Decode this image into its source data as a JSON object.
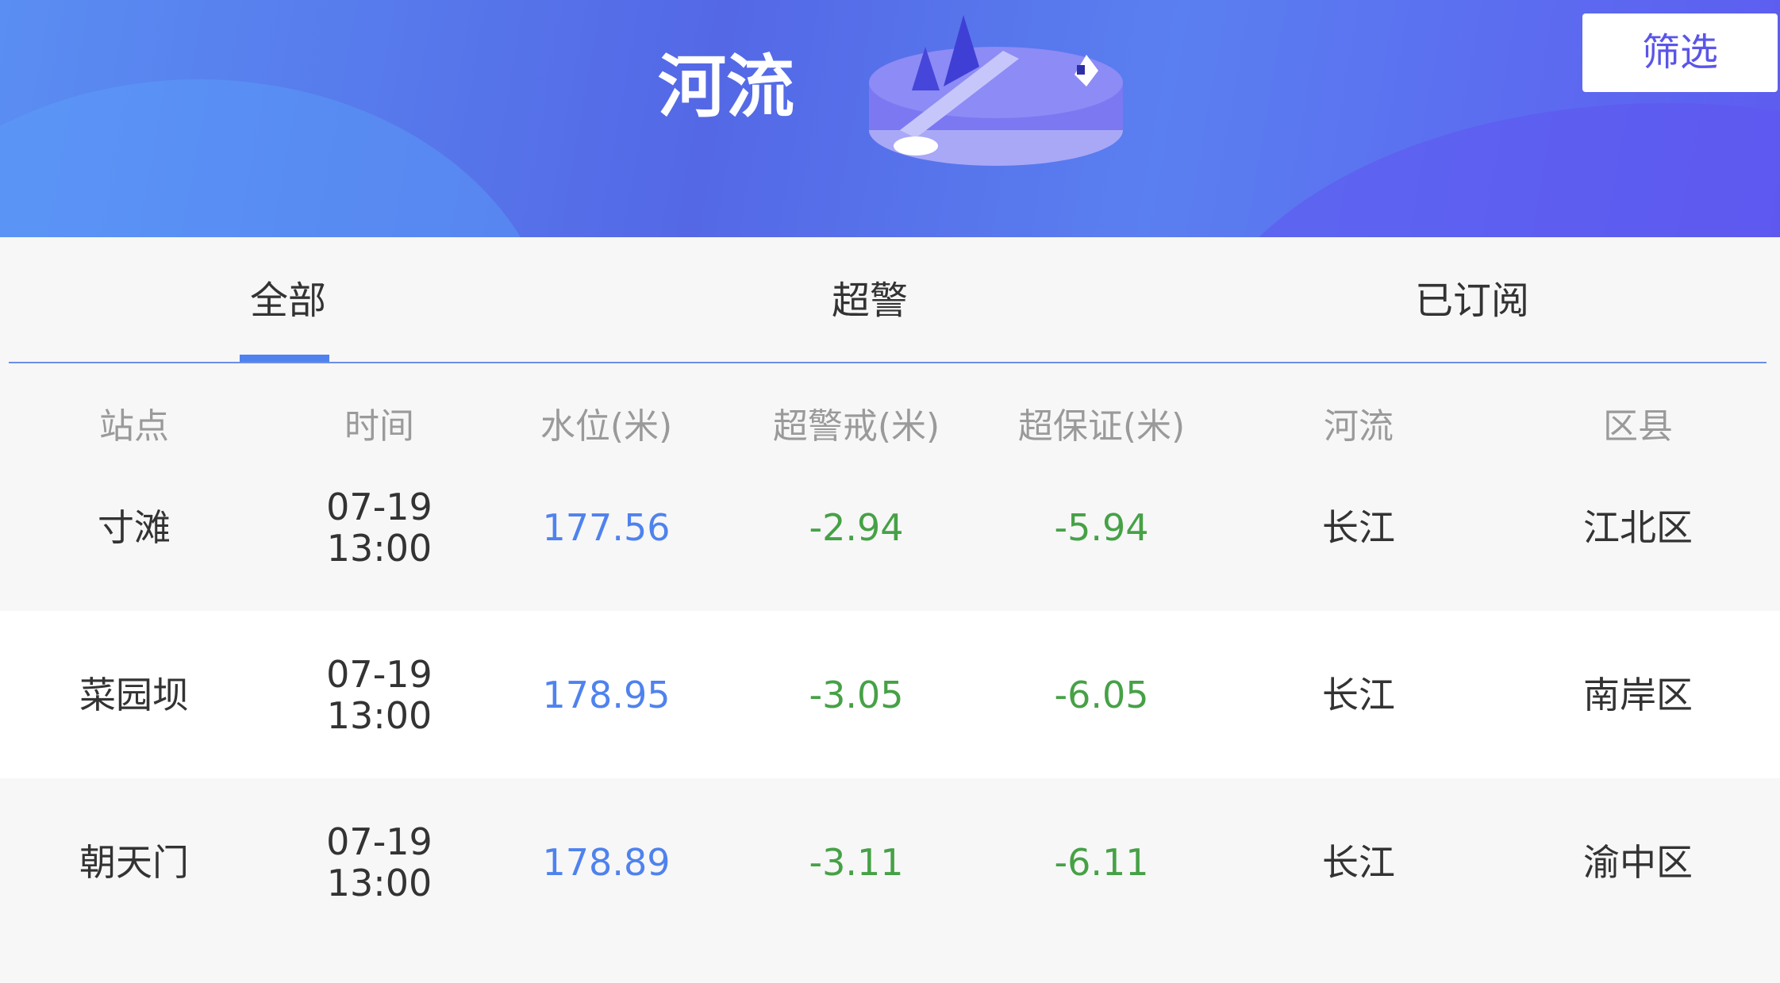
{
  "header": {
    "title": "河流",
    "filter_label": "筛选"
  },
  "colors": {
    "accent": "#4f82ee",
    "positive_value": "#4f82ee",
    "negative_value": "#46a146",
    "filter_text": "#5a55e8"
  },
  "tabs": [
    {
      "label": "全部",
      "active": true
    },
    {
      "label": "超警"
    },
    {
      "label": "已订阅"
    }
  ],
  "table": {
    "columns": [
      "站点",
      "时间",
      "水位(米)",
      "超警戒(米)",
      "超保证(米)",
      "河流",
      "区县"
    ],
    "rows": [
      {
        "station": "寸滩",
        "date": "07-19",
        "time": "13:00",
        "level": "177.56",
        "over_warning": "-2.94",
        "over_guarantee": "-5.94",
        "river": "长江",
        "district": "江北区"
      },
      {
        "station": "菜园坝",
        "date": "07-19",
        "time": "13:00",
        "level": "178.95",
        "over_warning": "-3.05",
        "over_guarantee": "-6.05",
        "river": "长江",
        "district": "南岸区"
      },
      {
        "station": "朝天门",
        "date": "07-19",
        "time": "13:00",
        "level": "178.89",
        "over_warning": "-3.11",
        "over_guarantee": "-6.11",
        "river": "长江",
        "district": "渝中区"
      }
    ]
  }
}
